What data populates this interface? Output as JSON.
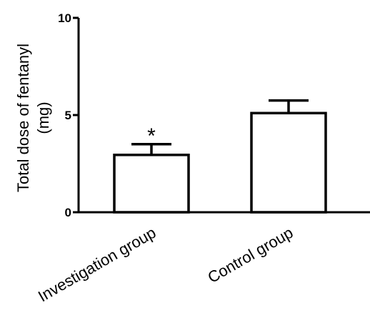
{
  "chart_data": {
    "type": "bar",
    "categories": [
      "Investigation group",
      "Control group"
    ],
    "values": [
      2.95,
      5.1
    ],
    "error_upper": [
      3.5,
      5.75
    ],
    "annotations": [
      "*",
      ""
    ],
    "ylabel_lines": [
      "Total dose of fentanyl",
      "(mg)"
    ],
    "ylim": [
      0,
      10
    ],
    "yticks": [
      "0",
      "5",
      "10"
    ],
    "grid": false,
    "colors": {
      "bar_fill": "#ffffff",
      "bar_stroke": "#000000"
    }
  }
}
